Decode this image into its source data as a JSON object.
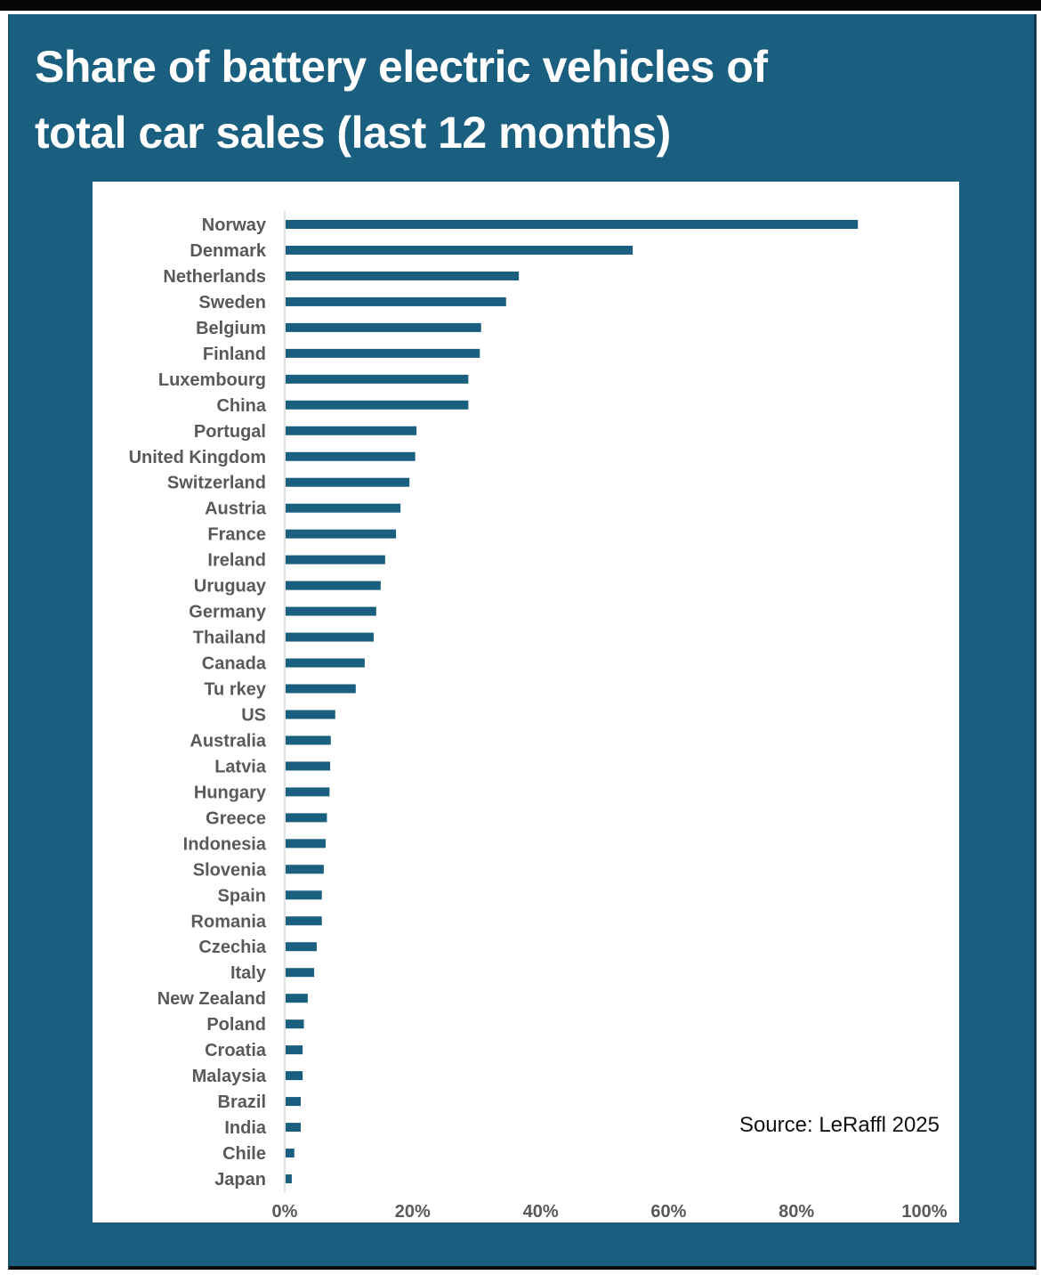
{
  "colors": {
    "panel": "#1a5e80",
    "bar": "#1a5e80",
    "label": "#595959",
    "axis": "#d9d9d9"
  },
  "chart_data": {
    "type": "bar",
    "orientation": "horizontal",
    "title": "Share of battery electric vehicles of total car sales (last 12 months)",
    "title_lines": [
      "Share of battery electric vehicles of",
      "total car sales (last 12 months)"
    ],
    "xlabel": "",
    "ylabel": "",
    "xlim": [
      0,
      100
    ],
    "x_unit": "%",
    "grid": false,
    "legend": "none",
    "x_ticks": [
      0,
      20,
      40,
      60,
      80,
      100
    ],
    "x_tick_labels": [
      "0%",
      "20%",
      "40%",
      "60%",
      "80%",
      "100%"
    ],
    "categories": [
      "Norway",
      "Denmark",
      "Netherlands",
      "Sweden",
      "Belgium",
      "Finland",
      "Luxembourg",
      "China",
      "Portugal",
      "United Kingdom",
      "Switzerland",
      "Austria",
      "France",
      "Ireland",
      "Uruguay",
      "Germany",
      "Thailand",
      "Canada",
      "Tu rkey",
      "US",
      "Australia",
      "Latvia",
      "Hungary",
      "Greece",
      "Indonesia",
      "Slovenia",
      "Spain",
      "Romania",
      "Czechia",
      "Italy",
      "New Zealand",
      "Poland",
      "Croatia",
      "Malaysia",
      "Brazil",
      "India",
      "Chile",
      "Japan"
    ],
    "values": [
      89.6,
      54.4,
      36.6,
      34.6,
      30.7,
      30.5,
      28.7,
      28.7,
      20.6,
      20.4,
      19.5,
      18.1,
      17.4,
      15.7,
      15.0,
      14.3,
      13.9,
      12.5,
      11.1,
      7.9,
      7.2,
      7.1,
      7.0,
      6.6,
      6.4,
      6.1,
      5.8,
      5.8,
      5.0,
      4.6,
      3.6,
      3.0,
      2.8,
      2.8,
      2.5,
      2.5,
      1.5,
      1.1
    ],
    "annotation": "Source: LeRaffl 2025"
  }
}
